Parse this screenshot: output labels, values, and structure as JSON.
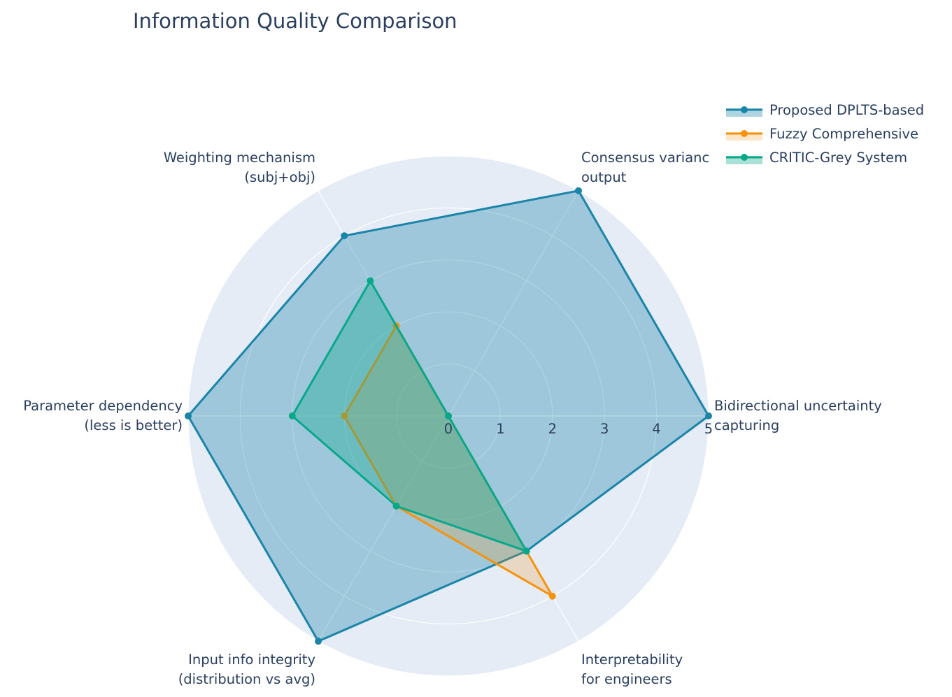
{
  "chart_data": {
    "type": "radar",
    "title": "Information Quality Comparison",
    "categories": [
      "Bidirectional uncertainty capturing",
      "Consensus variance output",
      "Weighting mechanism (subj+obj)",
      "Parameter dependency (less is better)",
      "Input info integrity (distribution vs avg)",
      "Interpretability for engineers"
    ],
    "category_lines": [
      [
        "Bidirectional uncertainty",
        "capturing"
      ],
      [
        "Consensus varianc",
        "output"
      ],
      [
        "Weighting mechanism",
        "(subj+obj)"
      ],
      [
        "Parameter dependency",
        "(less is better)"
      ],
      [
        "Input info integrity",
        "(distribution vs avg)"
      ],
      [
        "Interpretability",
        "for engineers"
      ]
    ],
    "radial_range": [
      0,
      5
    ],
    "radial_ticks": [
      "0",
      "1",
      "2",
      "3",
      "4",
      "5"
    ],
    "series": [
      {
        "name": "Proposed DPLTS-based",
        "values": [
          5,
          5,
          4,
          5,
          5,
          3
        ],
        "color": "#1a85a8",
        "fill": "rgba(26,133,168,0.35)"
      },
      {
        "name": "Fuzzy Comprehensive",
        "values": [
          0,
          0,
          2,
          2,
          2,
          4
        ],
        "color": "#f5930f",
        "fill": "rgba(245,147,15,0.22)"
      },
      {
        "name": "CRITIC-Grey System",
        "values": [
          0,
          0,
          3,
          3,
          2,
          3
        ],
        "color": "#0aa88a",
        "fill": "rgba(10,168,138,0.35)"
      }
    ],
    "legend_position": "top-right",
    "grid": true
  }
}
